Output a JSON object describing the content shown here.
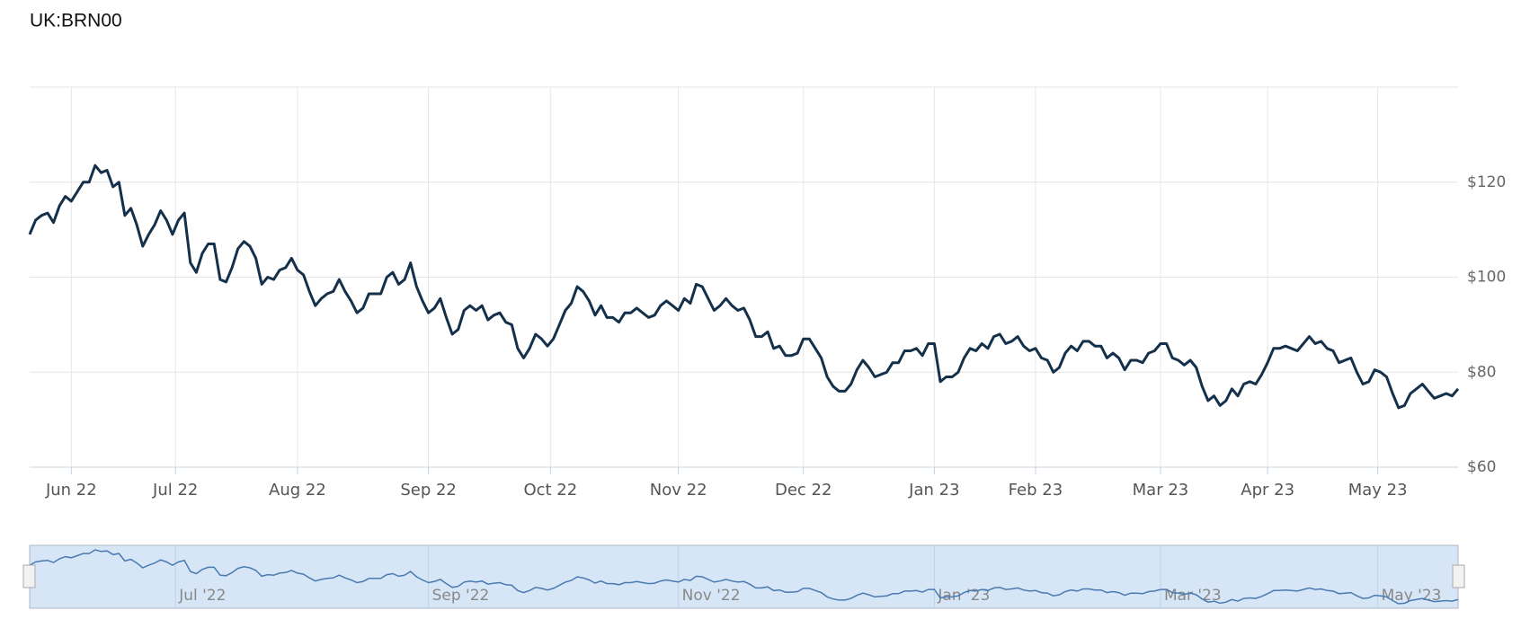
{
  "chart_data": {
    "type": "line",
    "title": "UK:BRN00",
    "color": "#14304a",
    "values": [
      109,
      112,
      113,
      113.5,
      111.5,
      115,
      117,
      116,
      118,
      120,
      120,
      123.5,
      122,
      122.5,
      119,
      120,
      113,
      114.5,
      111,
      106.5,
      109,
      111,
      114,
      112,
      109,
      112,
      113.5,
      103,
      101,
      105,
      107,
      107,
      99.5,
      99,
      102,
      106,
      107.5,
      106.5,
      104,
      98.5,
      100,
      99.5,
      101.5,
      102,
      104,
      101.5,
      100.5,
      97,
      94,
      95.5,
      96.5,
      97,
      99.5,
      97,
      95,
      92.5,
      93.5,
      96.5,
      96.5,
      96.5,
      100,
      101,
      98.5,
      99.5,
      103,
      98,
      95,
      92.5,
      93.5,
      95.5,
      91.5,
      88,
      89,
      93,
      94,
      93,
      94,
      91,
      92,
      92.5,
      90.5,
      90,
      85,
      83,
      85,
      88,
      87,
      85.5,
      87,
      90,
      93,
      94.5,
      98,
      97,
      95,
      92,
      94,
      91.5,
      91.5,
      90.5,
      92.5,
      92.5,
      93.5,
      92.5,
      91.5,
      92,
      94,
      95,
      94,
      93,
      95.5,
      94.5,
      98.5,
      98,
      95.5,
      93,
      94,
      95.5,
      94,
      93,
      93.5,
      91,
      87.5,
      87.5,
      88.5,
      85,
      85.5,
      83.5,
      83.5,
      84,
      87,
      87,
      85,
      83,
      79,
      77,
      76,
      76,
      77.5,
      80.5,
      82.5,
      81,
      79,
      79.5,
      80,
      82,
      82,
      84.5,
      84.5,
      85,
      83.5,
      86,
      86,
      78,
      79,
      79,
      80,
      83,
      85,
      84.5,
      86,
      85,
      87.5,
      88,
      86,
      86.5,
      87.5,
      85.5,
      84.5,
      85,
      83,
      82.5,
      80,
      81,
      84,
      85.5,
      84.5,
      86.5,
      86.5,
      85.5,
      85.5,
      83,
      84,
      83,
      80.5,
      82.5,
      82.5,
      82,
      84,
      84.5,
      86,
      86,
      83,
      82.5,
      81.5,
      82.5,
      81,
      77,
      74,
      75,
      73,
      74,
      76.5,
      75,
      77.5,
      78,
      77.5,
      79.5,
      82,
      85,
      85,
      85.5,
      85,
      84.5,
      86,
      87.5,
      86,
      86.5,
      85,
      84.5,
      82,
      82.5,
      83,
      80,
      77.5,
      78,
      80.5,
      80,
      79,
      75.5,
      72.5,
      73,
      75.5,
      76.5,
      77.5,
      76,
      74.5,
      75,
      75.5,
      75,
      76.5
    ],
    "xlim": [
      0,
      240
    ],
    "xticks": [
      {
        "value": 7,
        "label": "Jun 22"
      },
      {
        "value": 24.5,
        "label": "Jul 22"
      },
      {
        "value": 45,
        "label": "Aug 22"
      },
      {
        "value": 67,
        "label": "Sep 22"
      },
      {
        "value": 87.5,
        "label": "Oct 22"
      },
      {
        "value": 109,
        "label": "Nov 22"
      },
      {
        "value": 130,
        "label": "Dec 22"
      },
      {
        "value": 152,
        "label": "Jan 23"
      },
      {
        "value": 169,
        "label": "Feb 23"
      },
      {
        "value": 190,
        "label": "Mar 23"
      },
      {
        "value": 208,
        "label": "Apr 23"
      },
      {
        "value": 226.5,
        "label": "May 23"
      }
    ],
    "ylim": [
      60,
      140
    ],
    "yticks": [
      {
        "value": 60,
        "label": "$60"
      },
      {
        "value": 80,
        "label": "$80"
      },
      {
        "value": 100,
        "label": "$100"
      },
      {
        "value": 120,
        "label": "$120"
      }
    ],
    "grid": true,
    "navigator": {
      "color": "#4a7ab0",
      "xticks": [
        {
          "value": 24.5,
          "label": "Jul '22"
        },
        {
          "value": 67,
          "label": "Sep '22"
        },
        {
          "value": 109,
          "label": "Nov '22"
        },
        {
          "value": 152,
          "label": "Jan '23"
        },
        {
          "value": 190,
          "label": "Mar '23"
        },
        {
          "value": 226.5,
          "label": "May '23"
        }
      ]
    }
  }
}
